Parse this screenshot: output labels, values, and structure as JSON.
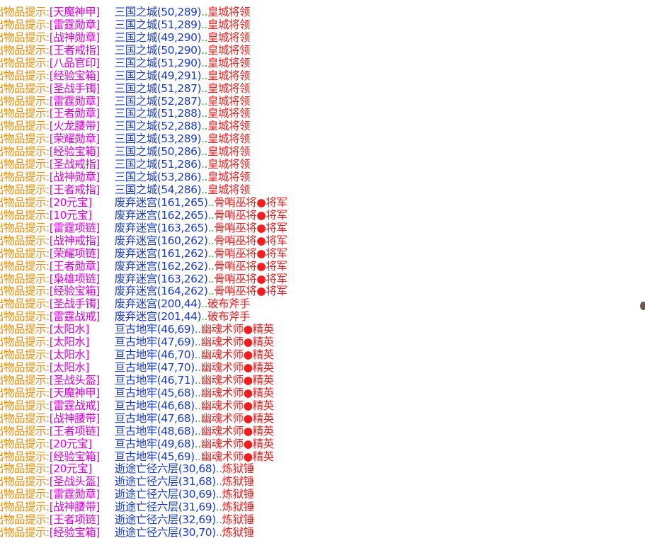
{
  "log": {
    "prefix": "出物品提示:",
    "separator": "..",
    "rows": [
      {
        "item": "[天魔神甲]",
        "location": "三国之城(50,289)",
        "monster": "皇城将领"
      },
      {
        "item": "[雷霆勋章]",
        "location": "三国之城(51,289)",
        "monster": "皇城将领"
      },
      {
        "item": "[战神勋章]",
        "location": "三国之城(49,290)",
        "monster": "皇城将领"
      },
      {
        "item": "[王者戒指]",
        "location": "三国之城(50,290)",
        "monster": "皇城将领"
      },
      {
        "item": "[八品官印]",
        "location": "三国之城(51,290)",
        "monster": "皇城将领"
      },
      {
        "item": "[经验宝箱]",
        "location": "三国之城(49,291)",
        "monster": "皇城将领"
      },
      {
        "item": "[圣战手镯]",
        "location": "三国之城(51,287)",
        "monster": "皇城将领"
      },
      {
        "item": "[雷霆勋章]",
        "location": "三国之城(52,287)",
        "monster": "皇城将领"
      },
      {
        "item": "[王者勋章]",
        "location": "三国之城(51,288)",
        "monster": "皇城将领"
      },
      {
        "item": "[火龙腰带]",
        "location": "三国之城(52,288)",
        "monster": "皇城将领"
      },
      {
        "item": "[荣耀勋章]",
        "location": "三国之城(53,289)",
        "monster": "皇城将领"
      },
      {
        "item": "[经验宝箱]",
        "location": "三国之城(50,286)",
        "monster": "皇城将领"
      },
      {
        "item": "[圣战戒指]",
        "location": "三国之城(51,286)",
        "monster": "皇城将领"
      },
      {
        "item": "[战神勋章]",
        "location": "三国之城(53,286)",
        "monster": "皇城将领"
      },
      {
        "item": "[王者戒指]",
        "location": "三国之城(54,286)",
        "monster": "皇城将领"
      },
      {
        "item": "[20元宝]",
        "location": "废弃迷宫(161,265)",
        "monster": "骨哨巫将●将军"
      },
      {
        "item": "[10元宝]",
        "location": "废弃迷宫(162,265)",
        "monster": "骨哨巫将●将军"
      },
      {
        "item": "[雷霆项链]",
        "location": "废弃迷宫(163,265)",
        "monster": "骨哨巫将●将军"
      },
      {
        "item": "[战神戒指]",
        "location": "废弃迷宫(160,262)",
        "monster": "骨哨巫将●将军"
      },
      {
        "item": "[荣耀项链]",
        "location": "废弃迷宫(161,262)",
        "monster": "骨哨巫将●将军"
      },
      {
        "item": "[王者勋章]",
        "location": "废弃迷宫(162,262)",
        "monster": "骨哨巫将●将军"
      },
      {
        "item": "[枭雄项链]",
        "location": "废弃迷宫(163,262)",
        "monster": "骨哨巫将●将军"
      },
      {
        "item": "[经验宝箱]",
        "location": "废弃迷宫(164,262)",
        "monster": "骨哨巫将●将军"
      },
      {
        "item": "[圣战手镯]",
        "location": "废弃迷宫(200,44)",
        "monster": "破布斧手"
      },
      {
        "item": "[雷霆战戒]",
        "location": "废弃迷宫(201,44)",
        "monster": "破布斧手"
      },
      {
        "item": "[太阳水]",
        "location": "亘古地牢(46,69)",
        "monster": "幽魂术师●精英"
      },
      {
        "item": "[太阳水]",
        "location": "亘古地牢(47,69)",
        "monster": "幽魂术师●精英"
      },
      {
        "item": "[太阳水]",
        "location": "亘古地牢(46,70)",
        "monster": "幽魂术师●精英"
      },
      {
        "item": "[太阳水]",
        "location": "亘古地牢(47,70)",
        "monster": "幽魂术师●精英"
      },
      {
        "item": "[圣战头盔]",
        "location": "亘古地牢(46,71)",
        "monster": "幽魂术师●精英"
      },
      {
        "item": "[天魔神甲]",
        "location": "亘古地牢(45,68)",
        "monster": "幽魂术师●精英"
      },
      {
        "item": "[雷霆战戒]",
        "location": "亘古地牢(46,68)",
        "monster": "幽魂术师●精英"
      },
      {
        "item": "[战神腰带]",
        "location": "亘古地牢(47,68)",
        "monster": "幽魂术师●精英"
      },
      {
        "item": "[王者项链]",
        "location": "亘古地牢(48,68)",
        "monster": "幽魂术师●精英"
      },
      {
        "item": "[20元宝]",
        "location": "亘古地牢(49,68)",
        "monster": "幽魂术师●精英"
      },
      {
        "item": "[经验宝箱]",
        "location": "亘古地牢(45,69)",
        "monster": "幽魂术师●精英"
      },
      {
        "item": "[20元宝]",
        "location": "逝途亡径六层(30,68)",
        "monster": "炼狱锤"
      },
      {
        "item": "[圣战头盔]",
        "location": "逝途亡径六层(31,68)",
        "monster": "炼狱锤"
      },
      {
        "item": "[雷霆勋章]",
        "location": "逝途亡径六层(30,69)",
        "monster": "炼狱锤"
      },
      {
        "item": "[战神腰带]",
        "location": "逝途亡径六层(31,69)",
        "monster": "炼狱锤"
      },
      {
        "item": "[王者项链]",
        "location": "逝途亡径六层(32,69)",
        "monster": "炼狱锤"
      },
      {
        "item": "[经验宝箱]",
        "location": "逝途亡径六层(30,70)",
        "monster": "炼狱锤"
      }
    ]
  }
}
